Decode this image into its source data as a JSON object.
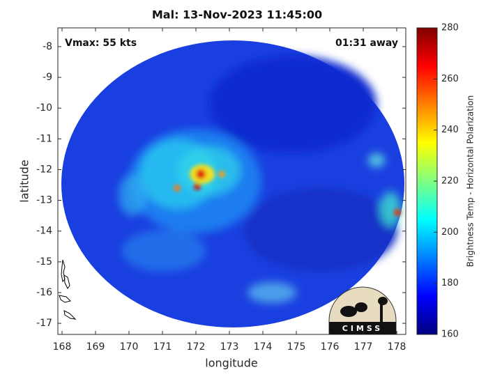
{
  "chart_data": {
    "type": "image",
    "title": "Mal: 13-Nov-2023 11:45:00",
    "annotations": [
      "Vmax: 55 kts",
      "01:31 away"
    ],
    "xlabel": "longitude",
    "ylabel": "latitude",
    "xlim": [
      167.875,
      178.27
    ],
    "xticks": [
      168,
      169,
      170,
      171,
      172,
      173,
      174,
      175,
      176,
      177,
      178
    ],
    "ylim": [
      -17.36,
      -7.39
    ],
    "yticks": [
      -17,
      -16,
      -15,
      -14,
      -13,
      -12,
      -11,
      -10,
      -9,
      -8
    ],
    "colorbar": {
      "label": "Brightness Temp - Horizontal Polarization",
      "lim": [
        160,
        280
      ],
      "ticks": [
        160,
        180,
        200,
        220,
        240,
        260,
        280
      ],
      "colormap": "jet"
    }
  },
  "logo": {
    "text": "CIMSS"
  }
}
